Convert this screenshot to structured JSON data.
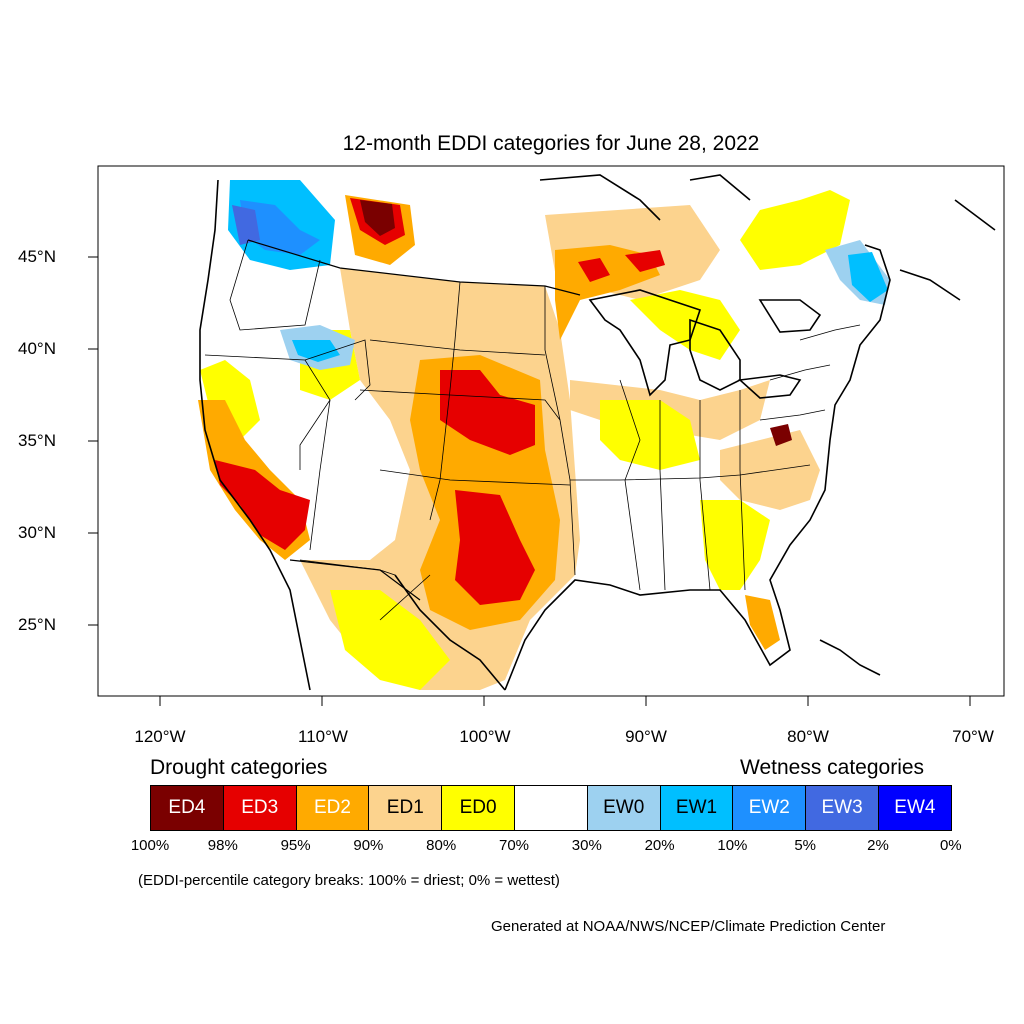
{
  "title": "12-month EDDI categories for June 28, 2022",
  "axes": {
    "lat_labels": [
      "45°N",
      "40°N",
      "35°N",
      "30°N",
      "25°N"
    ],
    "lon_labels": [
      "120°W",
      "110°W",
      "100°W",
      "90°W",
      "80°W",
      "70°W"
    ]
  },
  "legend": {
    "drought_heading": "Drought categories",
    "wetness_heading": "Wetness categories",
    "categories": [
      {
        "label": "ED4",
        "color": "#7a0000",
        "text_color": "#ffffff"
      },
      {
        "label": "ED3",
        "color": "#e60000",
        "text_color": "#ffffff"
      },
      {
        "label": "ED2",
        "color": "#ffaa00",
        "text_color": "#ffffff"
      },
      {
        "label": "ED1",
        "color": "#fcd38e",
        "text_color": "#000000"
      },
      {
        "label": "ED0",
        "color": "#ffff00",
        "text_color": "#000000"
      },
      {
        "label": "",
        "color": "#ffffff",
        "text_color": "#000000"
      },
      {
        "label": "EW0",
        "color": "#9dd1f0",
        "text_color": "#000000"
      },
      {
        "label": "EW1",
        "color": "#00bfff",
        "text_color": "#000000"
      },
      {
        "label": "EW2",
        "color": "#1e90ff",
        "text_color": "#ffffff"
      },
      {
        "label": "EW3",
        "color": "#4169e1",
        "text_color": "#ffffff"
      },
      {
        "label": "EW4",
        "color": "#0000ff",
        "text_color": "#ffffff"
      }
    ],
    "breaks": [
      "100%",
      "98%",
      "95%",
      "90%",
      "80%",
      "70%",
      "30%",
      "20%",
      "10%",
      "5%",
      "2%",
      "0%"
    ]
  },
  "note": "(EDDI-percentile category breaks: 100% = driest; 0% = wettest)",
  "credit": "Generated at NOAA/NWS/NCEP/Climate Prediction Center"
}
